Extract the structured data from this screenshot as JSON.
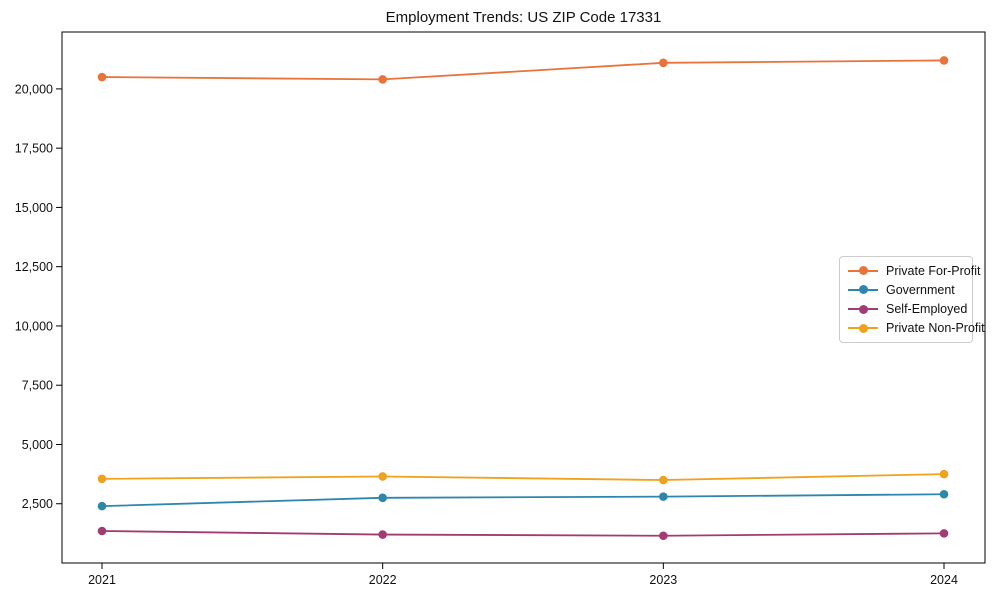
{
  "title": "Employment Trends: US ZIP Code 17331",
  "chart_data": {
    "type": "line",
    "title": "Employment Trends: US ZIP Code 17331",
    "x": [
      "2021",
      "2022",
      "2023",
      "2024"
    ],
    "series": [
      {
        "name": "Private For-Profit",
        "color": "#E8743B",
        "values": [
          20500,
          20400,
          21100,
          21200
        ]
      },
      {
        "name": "Government",
        "color": "#2E86AB",
        "values": [
          2400,
          2750,
          2800,
          2900
        ]
      },
      {
        "name": "Self-Employed",
        "color": "#A23B72",
        "values": [
          1350,
          1200,
          1150,
          1250
        ]
      },
      {
        "name": "Private Non-Profit",
        "color": "#F0A11D",
        "values": [
          3550,
          3650,
          3500,
          3750
        ]
      }
    ],
    "yticks": [
      2500,
      5000,
      7500,
      10000,
      12500,
      15000,
      17500,
      20000
    ],
    "ylim": [
      0,
      22400
    ],
    "xlabel": "",
    "ylabel": "",
    "grid": false,
    "legend_position": "center right",
    "text_color": "#111111",
    "spine_color": "#000000"
  }
}
